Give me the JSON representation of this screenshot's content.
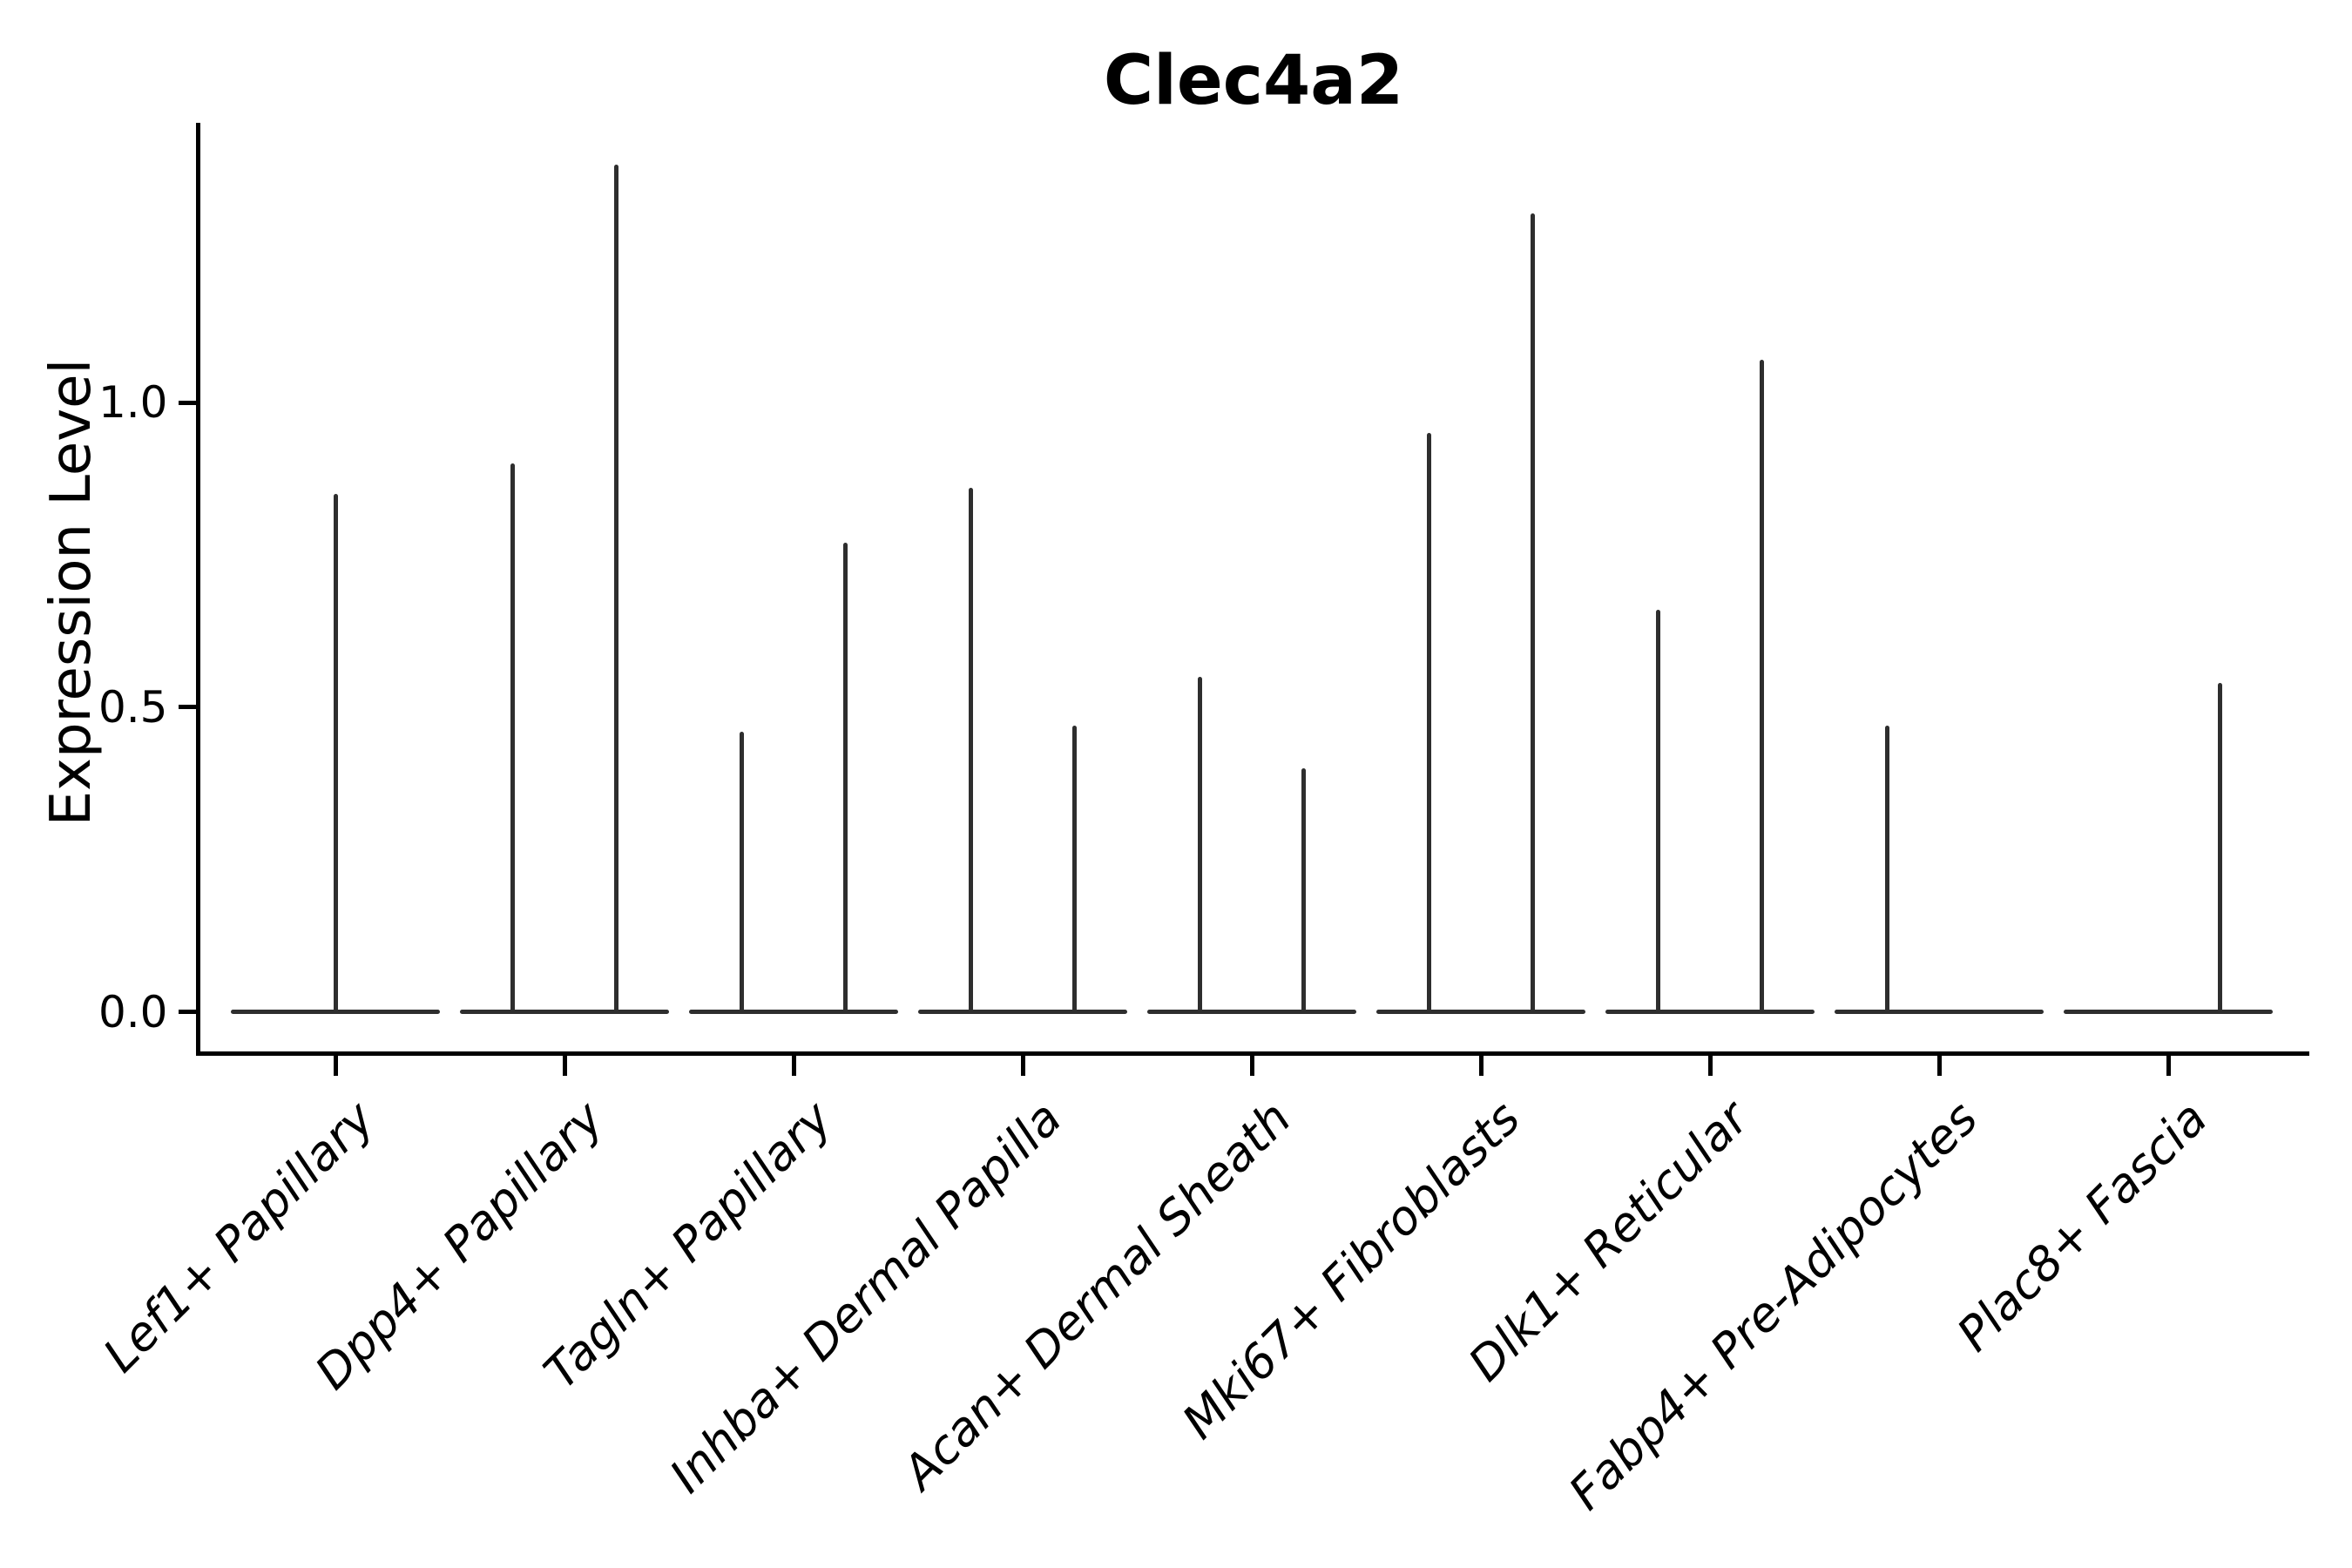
{
  "figure": {
    "title": "Clec4a2",
    "y_axis": {
      "label": "Expression Level",
      "ticks": [
        {
          "label": "0.0",
          "value": 0.0
        },
        {
          "label": "0.5",
          "value": 0.5
        },
        {
          "label": "1.0",
          "value": 1.0
        }
      ]
    },
    "x_axis": {
      "categories": [
        "Lef1+ Papillary",
        "Dpp4+ Papillary",
        "Tagln+ Papillary",
        "Inhba+ Dermal Papilla",
        "Acan+ Dermal Sheath",
        "Mki67+ Fibroblasts",
        "Dlk1+ Reticular",
        "Fabp4+ Pre-Adipocytes",
        "Plac8+ Fascia"
      ]
    }
  },
  "chart_data": {
    "type": "violin",
    "title": "Clec4a2",
    "xlabel": "",
    "ylabel": "Expression Level",
    "ylim": [
      -0.07,
      1.46
    ],
    "yticks": [
      0.0,
      0.5,
      1.0
    ],
    "grid": false,
    "legend": "none",
    "categories": [
      "Lef1+ Papillary",
      "Dpp4+ Papillary",
      "Tagln+ Papillary",
      "Inhba+ Dermal Papilla",
      "Acan+ Dermal Sheath",
      "Mki67+ Fibroblasts",
      "Dlk1+ Reticular",
      "Fabp4+ Pre-Adipocytes",
      "Plac8+ Fascia"
    ],
    "violins": [
      {
        "category": "Lef1+ Papillary",
        "spikes": [
          {
            "position": "center",
            "offset": 0,
            "max_expression": 0.85
          }
        ]
      },
      {
        "category": "Dpp4+ Papillary",
        "spikes": [
          {
            "position": "left",
            "offset": -0.225,
            "max_expression": 0.9
          },
          {
            "position": "right",
            "offset": 0.225,
            "max_expression": 1.39
          }
        ]
      },
      {
        "category": "Tagln+ Papillary",
        "spikes": [
          {
            "position": "left",
            "offset": -0.225,
            "max_expression": 0.46
          },
          {
            "position": "right",
            "offset": 0.225,
            "max_expression": 0.77
          }
        ]
      },
      {
        "category": "Inhba+ Dermal Papilla",
        "spikes": [
          {
            "position": "left",
            "offset": -0.225,
            "max_expression": 0.86
          },
          {
            "position": "right",
            "offset": 0.225,
            "max_expression": 0.47
          }
        ]
      },
      {
        "category": "Acan+ Dermal Sheath",
        "spikes": [
          {
            "position": "left",
            "offset": -0.225,
            "max_expression": 0.55
          },
          {
            "position": "right",
            "offset": 0.225,
            "max_expression": 0.4
          }
        ]
      },
      {
        "category": "Mki67+ Fibroblasts",
        "spikes": [
          {
            "position": "left",
            "offset": -0.225,
            "max_expression": 0.95
          },
          {
            "position": "right",
            "offset": 0.225,
            "max_expression": 1.31
          }
        ]
      },
      {
        "category": "Dlk1+ Reticular",
        "spikes": [
          {
            "position": "left",
            "offset": -0.225,
            "max_expression": 0.66
          },
          {
            "position": "right",
            "offset": 0.225,
            "max_expression": 1.07
          }
        ]
      },
      {
        "category": "Fabp4+ Pre-Adipocytes",
        "spikes": [
          {
            "position": "left",
            "offset": -0.225,
            "max_expression": 0.47
          }
        ]
      },
      {
        "category": "Plac8+ Fascia",
        "spikes": [
          {
            "position": "right",
            "offset": 0.225,
            "max_expression": 0.54
          }
        ]
      }
    ],
    "style": {
      "violin_line_color": "#2e2e2e",
      "spine_color": "#000000",
      "background": "#ffffff",
      "baseline_halfwidth_fraction": 0.455,
      "dodge_fraction": 0.225
    }
  }
}
